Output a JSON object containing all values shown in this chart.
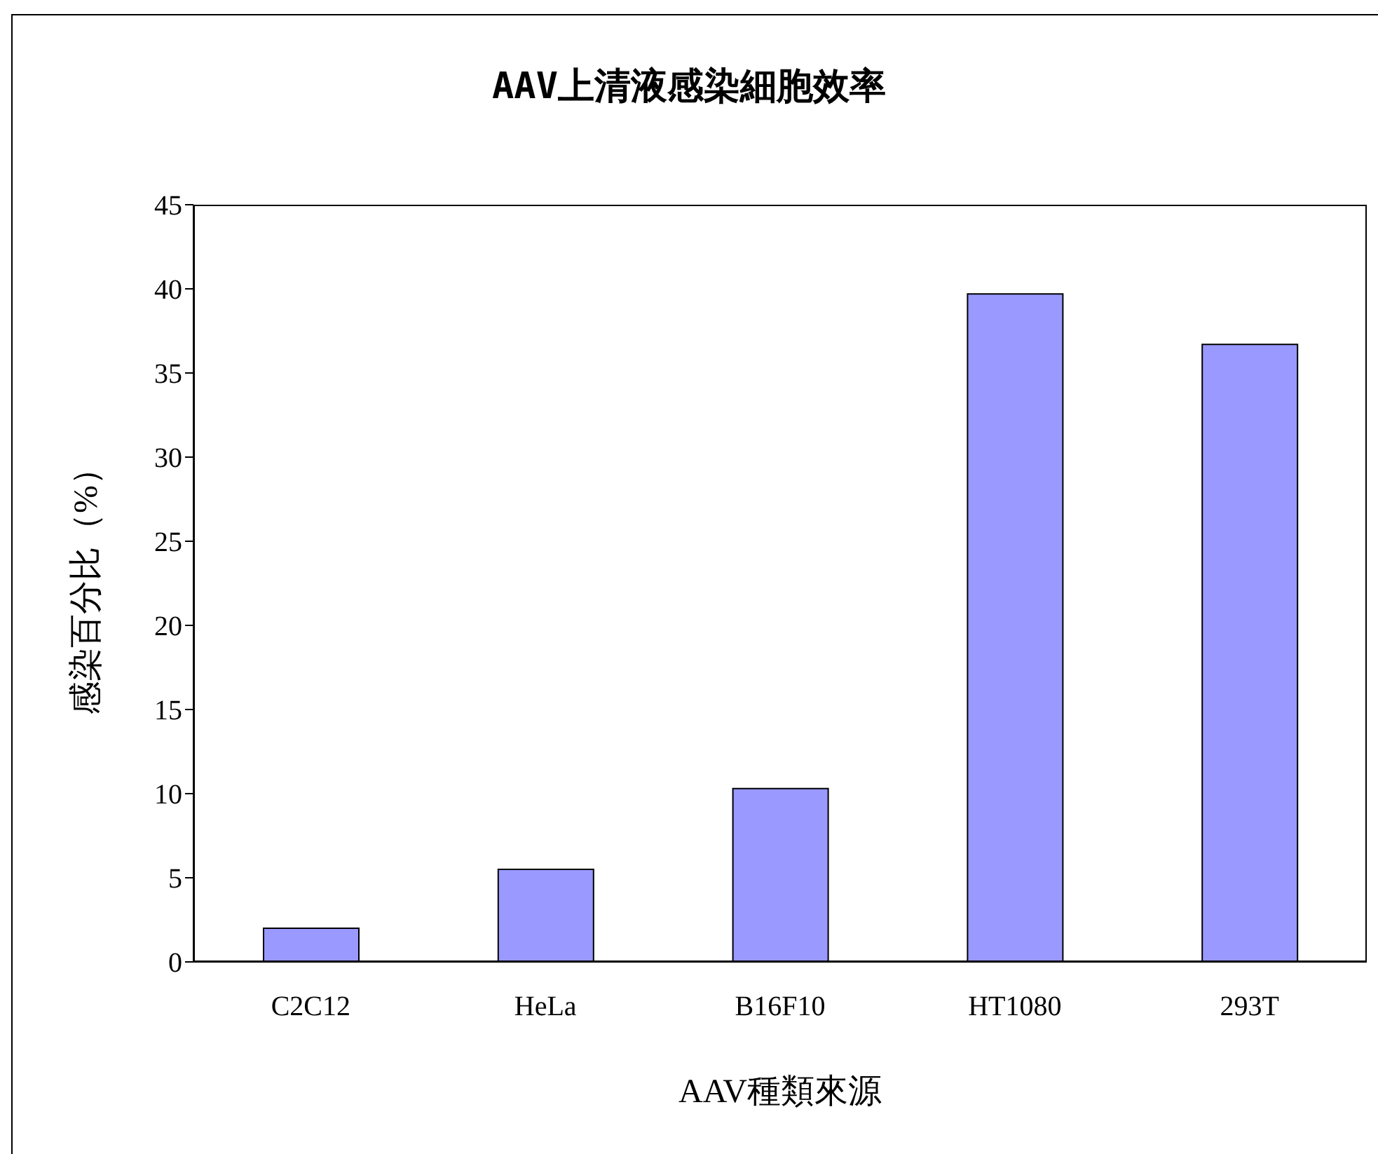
{
  "chart_data": {
    "type": "bar",
    "title": "AAV上清液感染細胞效率",
    "xlabel": "AAV種類來源",
    "ylabel": "感染百分比（%）",
    "categories": [
      "C2C12",
      "HeLa",
      "B16F10",
      "HT1080",
      "293T"
    ],
    "values": [
      2.0,
      5.5,
      10.3,
      39.7,
      36.7
    ],
    "color": "#9999ff",
    "ylim": [
      0,
      45
    ],
    "yticks": [
      0,
      5,
      10,
      15,
      20,
      25,
      30,
      35,
      40,
      45
    ],
    "grid": false
  }
}
